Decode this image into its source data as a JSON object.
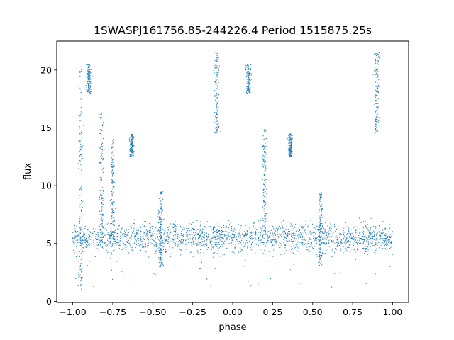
{
  "chart_data": {
    "type": "scatter",
    "title": "1SWASPJ161756.85-244226.4 Period 1515875.25s",
    "xlabel": "phase",
    "ylabel": "flux",
    "xlim": [
      -1.1,
      1.1
    ],
    "ylim": [
      -0.1,
      22.5
    ],
    "xticks": [
      -1.0,
      -0.75,
      -0.5,
      -0.25,
      0.0,
      0.25,
      0.5,
      0.75,
      1.0
    ],
    "xtick_labels": [
      "−1.00",
      "−0.75",
      "−0.50",
      "−0.25",
      "0.00",
      "0.25",
      "0.50",
      "0.75",
      "1.00"
    ],
    "yticks": [
      0,
      5,
      10,
      15,
      20
    ],
    "ytick_labels": [
      "0",
      "5",
      "10",
      "15",
      "20"
    ],
    "grid": false,
    "legend": "none",
    "point_color": "#1f77b4",
    "x_span": [
      -1.0,
      1.0
    ],
    "periodic_in_phase": true,
    "baseline_flux": 5.5,
    "features": [
      {
        "phase": -0.95,
        "flux_range": [
          1.0,
          20.5
        ]
      },
      {
        "phase": -0.9,
        "flux_range": [
          18.0,
          20.5
        ]
      },
      {
        "phase": -0.82,
        "flux_range": [
          5.0,
          16.5
        ]
      },
      {
        "phase": -0.75,
        "flux_range": [
          5.0,
          14.0
        ]
      },
      {
        "phase": -0.63,
        "flux_range": [
          12.5,
          14.5
        ]
      },
      {
        "phase": -0.45,
        "flux_range": [
          3.0,
          9.5
        ]
      },
      {
        "phase": -0.1,
        "flux_range": [
          14.5,
          21.5
        ]
      },
      {
        "phase": 0.1,
        "flux_range": [
          18.0,
          20.5
        ]
      },
      {
        "phase": 0.2,
        "flux_range": [
          6.0,
          15.0
        ]
      },
      {
        "phase": 0.36,
        "flux_range": [
          12.5,
          14.5
        ]
      },
      {
        "phase": 0.55,
        "flux_range": [
          3.0,
          9.5
        ]
      },
      {
        "phase": 0.9,
        "flux_range": [
          14.5,
          21.5
        ]
      }
    ]
  }
}
